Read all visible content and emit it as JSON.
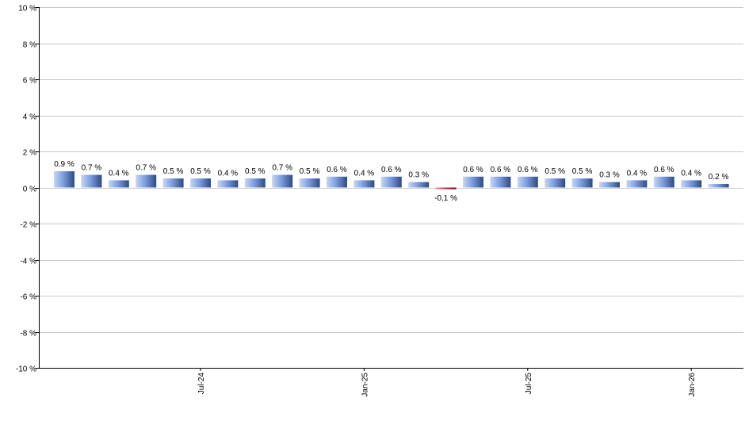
{
  "chart_data": {
    "type": "bar",
    "categories": [
      "",
      "",
      "",
      "",
      "",
      "Jul-24",
      "",
      "",
      "",
      "",
      "",
      "Jan-25",
      "",
      "",
      "",
      "",
      "",
      "Jul-25",
      "",
      "",
      "",
      "",
      "",
      "Jan-26",
      ""
    ],
    "values": [
      0.9,
      0.7,
      0.4,
      0.7,
      0.5,
      0.5,
      0.4,
      0.5,
      0.7,
      0.5,
      0.6,
      0.4,
      0.6,
      0.3,
      -0.1,
      0.6,
      0.6,
      0.6,
      0.5,
      0.5,
      0.3,
      0.4,
      0.6,
      0.4,
      0.2
    ],
    "data_labels": [
      "0.9 %",
      "0.7 %",
      "0.4 %",
      "0.7 %",
      "0.5 %",
      "0.5 %",
      "0.4 %",
      "0.5 %",
      "0.7 %",
      "0.5 %",
      "0.6 %",
      "0.4 %",
      "0.6 %",
      "0.3 %",
      "-0.1 %",
      "0.6 %",
      "0.6 %",
      "0.6 %",
      "0.5 %",
      "0.5 %",
      "0.3 %",
      "0.4 %",
      "0.6 %",
      "0.4 %",
      "0.2 %"
    ],
    "ylim": [
      -10,
      10
    ],
    "yticks": [
      10,
      8,
      6,
      4,
      2,
      0,
      -2,
      -4,
      -6,
      -8,
      -10
    ],
    "ytick_labels": [
      "10 %",
      "8 %",
      "6 %",
      "4 %",
      "2 %",
      "0 %",
      "-2 %",
      "-4 %",
      "-6 %",
      "-8 %",
      "-10 %"
    ],
    "xtick_labels": [
      "Jul-24",
      "Jan-25",
      "Jul-25",
      "Jan-26"
    ],
    "grid": true,
    "colors": {
      "positive_light": "#a8c4f0",
      "positive_dark": "#3a5690",
      "negative_light": "#e08090",
      "negative_dark": "#8a1f35",
      "grid": "#c8c8c8"
    }
  }
}
